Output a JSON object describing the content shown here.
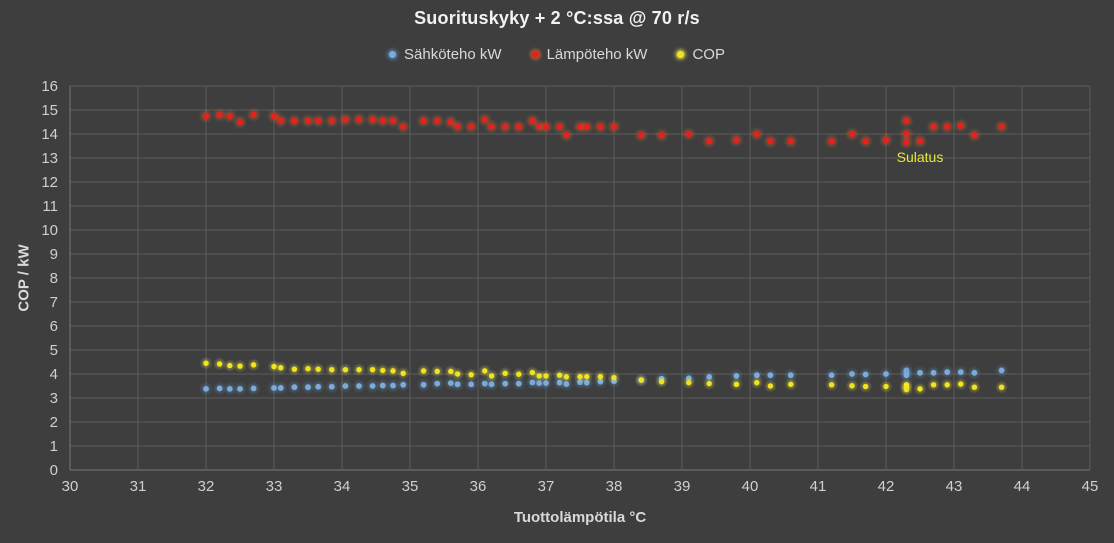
{
  "chart_data": {
    "type": "scatter",
    "title": "Suorituskyky + 2 °C:ssa @ 70 r/s",
    "xlabel": "Tuottolämpötila °C",
    "ylabel": "COP / kW",
    "xlim": [
      30,
      45
    ],
    "ylim": [
      0,
      16
    ],
    "x_ticks": [
      30,
      31,
      32,
      33,
      34,
      35,
      36,
      37,
      38,
      39,
      40,
      41,
      42,
      43,
      44,
      45
    ],
    "y_ticks": [
      0,
      1,
      2,
      3,
      4,
      5,
      6,
      7,
      8,
      9,
      10,
      11,
      12,
      13,
      14,
      15,
      16
    ],
    "grid": true,
    "legend_position": "top",
    "background": "#3e3e3e",
    "gridline_color": "#5c5c5c",
    "axis_line_color": "#787878",
    "tick_label_color": "#cfcfcf",
    "x": [
      32.0,
      32.2,
      32.35,
      32.5,
      32.7,
      33.0,
      33.1,
      33.3,
      33.5,
      33.65,
      33.85,
      34.05,
      34.25,
      34.45,
      34.6,
      34.75,
      34.9,
      35.2,
      35.4,
      35.6,
      35.7,
      35.9,
      36.1,
      36.2,
      36.4,
      36.6,
      36.8,
      36.9,
      37.0,
      37.2,
      37.3,
      37.5,
      37.6,
      37.8,
      38.0,
      38.4,
      38.7,
      39.1,
      39.4,
      39.8,
      40.1,
      40.3,
      40.6,
      41.2,
      41.5,
      41.7,
      42.0,
      42.3,
      42.3,
      42.3,
      42.5,
      42.7,
      42.9,
      43.1,
      43.3,
      43.7
    ],
    "series": [
      {
        "name": "Sähköteho kW",
        "color": "#7fa9d6",
        "halo": "#5b9bd5",
        "values": [
          3.38,
          3.4,
          3.38,
          3.38,
          3.4,
          3.42,
          3.42,
          3.45,
          3.45,
          3.47,
          3.47,
          3.5,
          3.5,
          3.5,
          3.52,
          3.52,
          3.55,
          3.55,
          3.6,
          3.62,
          3.57,
          3.57,
          3.6,
          3.57,
          3.6,
          3.6,
          3.65,
          3.62,
          3.62,
          3.64,
          3.58,
          3.66,
          3.64,
          3.68,
          3.7,
          3.74,
          3.8,
          3.82,
          3.88,
          3.92,
          3.95,
          3.95,
          3.95,
          3.95,
          4.0,
          3.98,
          4.0,
          4.15,
          4.05,
          3.95,
          4.05,
          4.05,
          4.08,
          4.08,
          4.05,
          4.15
        ]
      },
      {
        "name": "Lämpöteho kW",
        "color": "#e4211c",
        "halo": "#f07030",
        "values": [
          14.75,
          14.8,
          14.75,
          14.5,
          14.8,
          14.75,
          14.55,
          14.55,
          14.55,
          14.55,
          14.55,
          14.6,
          14.6,
          14.6,
          14.55,
          14.55,
          14.3,
          14.55,
          14.55,
          14.5,
          14.3,
          14.3,
          14.6,
          14.3,
          14.3,
          14.3,
          14.55,
          14.3,
          14.3,
          14.3,
          13.95,
          14.3,
          14.3,
          14.3,
          14.3,
          13.95,
          13.95,
          14.0,
          13.7,
          13.75,
          14.0,
          13.7,
          13.7,
          13.7,
          14.0,
          13.7,
          13.75,
          14.55,
          14.0,
          13.65,
          13.7,
          14.3,
          14.3,
          14.35,
          13.95,
          14.3
        ]
      },
      {
        "name": "COP",
        "color": "#f2e41c",
        "halo": "#ffff55",
        "values": [
          4.45,
          4.42,
          4.35,
          4.33,
          4.38,
          4.31,
          4.26,
          4.2,
          4.22,
          4.2,
          4.18,
          4.18,
          4.18,
          4.18,
          4.15,
          4.13,
          4.03,
          4.13,
          4.11,
          4.11,
          4.0,
          3.97,
          4.13,
          3.92,
          4.03,
          3.99,
          4.06,
          3.92,
          3.92,
          3.95,
          3.88,
          3.89,
          3.89,
          3.89,
          3.85,
          3.75,
          3.68,
          3.64,
          3.6,
          3.57,
          3.64,
          3.5,
          3.57,
          3.55,
          3.51,
          3.48,
          3.48,
          3.55,
          3.45,
          3.35,
          3.38,
          3.55,
          3.55,
          3.58,
          3.45,
          3.45
        ]
      }
    ],
    "annotations": [
      {
        "text": "Sulatus",
        "x": 42.5,
        "y": 12.83,
        "color": "#e8e83a"
      }
    ]
  }
}
